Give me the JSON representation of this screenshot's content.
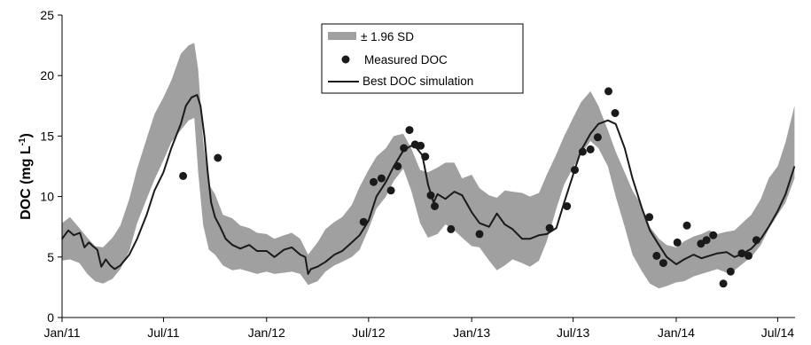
{
  "chart_data": {
    "type": "line",
    "xlabel": "",
    "ylabel_main": "DOC (mg L",
    "ylabel_sup": "-1",
    "ylabel_close": ")",
    "ylim": [
      0,
      25
    ],
    "yticks": [
      "0",
      "5",
      "10",
      "15",
      "20",
      "25"
    ],
    "xticks": [
      {
        "label": "Jan/11",
        "date": "2011-01-01"
      },
      {
        "label": "Jul/11",
        "date": "2011-07-01"
      },
      {
        "label": "Jan/12",
        "date": "2012-01-01"
      },
      {
        "label": "Jul/12",
        "date": "2012-07-01"
      },
      {
        "label": "Jan/13",
        "date": "2013-01-01"
      },
      {
        "label": "Jul/13",
        "date": "2013-07-01"
      },
      {
        "label": "Jan/14",
        "date": "2014-01-01"
      },
      {
        "label": "Jul/14",
        "date": "2014-07-01"
      }
    ],
    "xlim": [
      "2011-01-01",
      "2014-08-01"
    ],
    "grid": false,
    "legend_position": "top-center",
    "colors": {
      "band": "#a0a0a0",
      "line": "#1a1a1a",
      "points": "#1a1a1a"
    },
    "series": [
      {
        "name": "± 1.96 SD",
        "kind": "band",
        "x": [
          "2011-01-01",
          "2011-01-15",
          "2011-02-01",
          "2011-02-15",
          "2011-03-01",
          "2011-03-15",
          "2011-04-01",
          "2011-04-15",
          "2011-05-01",
          "2011-05-15",
          "2011-06-01",
          "2011-06-15",
          "2011-07-01",
          "2011-07-15",
          "2011-08-01",
          "2011-08-15",
          "2011-08-25",
          "2011-09-01",
          "2011-09-10",
          "2011-09-20",
          "2011-10-01",
          "2011-10-15",
          "2011-11-01",
          "2011-11-15",
          "2011-12-01",
          "2011-12-15",
          "2012-01-01",
          "2012-01-15",
          "2012-02-01",
          "2012-02-15",
          "2012-03-01",
          "2012-03-15",
          "2012-04-01",
          "2012-04-15",
          "2012-05-01",
          "2012-05-15",
          "2012-06-01",
          "2012-06-15",
          "2012-07-01",
          "2012-07-15",
          "2012-08-01",
          "2012-08-15",
          "2012-09-01",
          "2012-09-15",
          "2012-10-01",
          "2012-10-15",
          "2012-11-01",
          "2012-11-15",
          "2012-12-01",
          "2012-12-15",
          "2013-01-01",
          "2013-01-15",
          "2013-02-01",
          "2013-02-15",
          "2013-03-01",
          "2013-03-15",
          "2013-04-01",
          "2013-04-15",
          "2013-05-01",
          "2013-05-15",
          "2013-06-01",
          "2013-06-15",
          "2013-07-01",
          "2013-07-15",
          "2013-08-01",
          "2013-08-15",
          "2013-09-01",
          "2013-09-15",
          "2013-10-01",
          "2013-10-15",
          "2013-11-01",
          "2013-11-15",
          "2013-12-01",
          "2013-12-15",
          "2014-01-01",
          "2014-01-15",
          "2014-02-01",
          "2014-02-15",
          "2014-03-01",
          "2014-03-15",
          "2014-04-01",
          "2014-04-15",
          "2014-05-01",
          "2014-05-15",
          "2014-06-01",
          "2014-06-15",
          "2014-07-01",
          "2014-07-15",
          "2014-07-31"
        ],
        "upper": [
          7.8,
          8.3,
          7.4,
          6.6,
          5.9,
          5.8,
          6.6,
          7.6,
          9.8,
          12.3,
          14.8,
          16.8,
          18.2,
          19.6,
          21.8,
          22.5,
          22.7,
          20.5,
          14.5,
          11.0,
          10.2,
          8.5,
          8.2,
          7.6,
          7.4,
          7.0,
          6.9,
          6.5,
          6.8,
          7.0,
          6.5,
          5.2,
          6.2,
          7.3,
          7.9,
          8.3,
          9.3,
          10.8,
          12.2,
          13.3,
          14.0,
          15.0,
          15.2,
          14.0,
          12.2,
          12.0,
          12.4,
          12.8,
          12.8,
          11.5,
          11.8,
          10.7,
          10.1,
          9.9,
          10.5,
          10.4,
          10.3,
          10.0,
          10.3,
          11.8,
          13.5,
          15.0,
          16.5,
          17.8,
          18.7,
          17.5,
          15.5,
          13.7,
          12.0,
          10.5,
          9.2,
          7.5,
          6.5,
          6.0,
          5.8,
          6.3,
          6.7,
          6.9,
          7.2,
          6.9,
          7.1,
          7.2,
          7.9,
          8.5,
          9.8,
          11.5,
          12.5,
          14.5,
          17.5
        ],
        "lower": [
          4.7,
          4.8,
          4.5,
          3.6,
          3.0,
          2.8,
          3.2,
          4.0,
          5.5,
          7.8,
          9.8,
          11.4,
          13.0,
          14.5,
          15.5,
          16.3,
          16.5,
          12.0,
          7.6,
          5.6,
          5.2,
          4.3,
          3.9,
          4.0,
          3.8,
          3.6,
          3.8,
          3.6,
          3.7,
          3.8,
          3.6,
          2.7,
          3.0,
          3.8,
          4.3,
          4.6,
          5.0,
          5.6,
          7.3,
          9.0,
          10.0,
          11.3,
          12.3,
          10.5,
          7.8,
          6.6,
          6.9,
          7.7,
          7.2,
          6.6,
          5.9,
          5.8,
          4.7,
          3.9,
          4.3,
          4.8,
          4.5,
          4.2,
          4.7,
          6.3,
          9.0,
          11.0,
          12.4,
          13.5,
          14.6,
          14.0,
          12.5,
          10.0,
          7.5,
          5.2,
          3.8,
          2.8,
          2.4,
          2.6,
          2.9,
          3.0,
          3.4,
          3.6,
          3.8,
          4.0,
          3.7,
          3.9,
          4.5,
          5.0,
          6.0,
          7.3,
          8.5,
          9.5,
          11.5
        ]
      },
      {
        "name": "Measured DOC",
        "kind": "points",
        "x": [
          "2011-08-05",
          "2011-10-06",
          "2012-06-22",
          "2012-07-10",
          "2012-07-24",
          "2012-08-10",
          "2012-08-22",
          "2012-09-02",
          "2012-09-12",
          "2012-09-22",
          "2012-10-02",
          "2012-10-10",
          "2012-10-20",
          "2012-10-27",
          "2012-11-25",
          "2013-01-15",
          "2013-05-20",
          "2013-06-20",
          "2013-07-04",
          "2013-07-18",
          "2013-08-01",
          "2013-08-14",
          "2013-09-02",
          "2013-09-14",
          "2013-11-14",
          "2013-11-27",
          "2013-12-09",
          "2014-01-03",
          "2014-01-20",
          "2014-02-14",
          "2014-02-24",
          "2014-03-08",
          "2014-03-26",
          "2014-04-08",
          "2014-04-28",
          "2014-05-10",
          "2014-05-24"
        ],
        "y": [
          11.7,
          13.2,
          7.9,
          11.2,
          11.5,
          10.5,
          12.5,
          14.0,
          15.5,
          14.3,
          14.2,
          13.3,
          10.1,
          9.2,
          7.3,
          6.9,
          7.4,
          9.2,
          12.2,
          13.7,
          13.9,
          14.9,
          18.7,
          16.9,
          8.3,
          5.1,
          4.5,
          6.2,
          7.6,
          6.1,
          6.4,
          6.8,
          2.8,
          3.8,
          5.3,
          5.1,
          6.4
        ]
      },
      {
        "name": "Best DOC simulation",
        "kind": "line",
        "x": [
          "2011-01-01",
          "2011-01-12",
          "2011-01-22",
          "2011-02-02",
          "2011-02-10",
          "2011-02-18",
          "2011-02-25",
          "2011-03-05",
          "2011-03-12",
          "2011-03-20",
          "2011-03-28",
          "2011-04-05",
          "2011-04-15",
          "2011-05-01",
          "2011-05-15",
          "2011-06-01",
          "2011-06-15",
          "2011-07-01",
          "2011-07-15",
          "2011-08-01",
          "2011-08-10",
          "2011-08-20",
          "2011-08-30",
          "2011-09-05",
          "2011-09-12",
          "2011-09-18",
          "2011-09-24",
          "2011-10-01",
          "2011-10-10",
          "2011-10-20",
          "2011-11-01",
          "2011-11-15",
          "2011-12-01",
          "2011-12-15",
          "2012-01-01",
          "2012-01-15",
          "2012-02-01",
          "2012-02-15",
          "2012-03-01",
          "2012-03-10",
          "2012-03-15",
          "2012-03-20",
          "2012-04-01",
          "2012-04-15",
          "2012-05-01",
          "2012-05-15",
          "2012-06-01",
          "2012-06-15",
          "2012-07-01",
          "2012-07-15",
          "2012-08-01",
          "2012-08-15",
          "2012-09-01",
          "2012-09-15",
          "2012-09-25",
          "2012-10-05",
          "2012-10-15",
          "2012-10-25",
          "2012-11-01",
          "2012-11-15",
          "2012-12-01",
          "2012-12-15",
          "2013-01-01",
          "2013-01-15",
          "2013-02-01",
          "2013-02-15",
          "2013-03-01",
          "2013-03-15",
          "2013-04-01",
          "2013-04-15",
          "2013-05-01",
          "2013-05-15",
          "2013-06-01",
          "2013-06-15",
          "2013-07-01",
          "2013-07-15",
          "2013-08-01",
          "2013-08-15",
          "2013-09-01",
          "2013-09-15",
          "2013-10-01",
          "2013-10-15",
          "2013-11-01",
          "2013-11-15",
          "2013-12-01",
          "2013-12-15",
          "2014-01-01",
          "2014-01-15",
          "2014-02-01",
          "2014-02-15",
          "2014-03-01",
          "2014-03-15",
          "2014-04-01",
          "2014-04-15",
          "2014-05-01",
          "2014-05-15",
          "2014-06-01",
          "2014-06-15",
          "2014-07-01",
          "2014-07-15",
          "2014-07-31"
        ],
        "y": [
          6.5,
          7.2,
          6.8,
          7.0,
          5.8,
          6.2,
          5.9,
          5.6,
          4.2,
          4.8,
          4.3,
          4.0,
          4.3,
          5.2,
          6.5,
          8.5,
          10.5,
          12.0,
          14.0,
          16.0,
          17.5,
          18.2,
          18.4,
          17.5,
          15.0,
          12.0,
          9.5,
          8.3,
          7.5,
          6.5,
          6.0,
          5.7,
          6.0,
          5.5,
          5.5,
          5.0,
          5.6,
          5.8,
          5.2,
          5.0,
          3.6,
          4.0,
          4.2,
          4.6,
          5.2,
          5.5,
          6.2,
          6.8,
          8.0,
          10.0,
          11.2,
          12.5,
          13.8,
          14.2,
          14.0,
          13.4,
          11.0,
          9.5,
          10.2,
          9.8,
          10.4,
          10.1,
          8.7,
          7.8,
          7.5,
          8.6,
          7.7,
          7.3,
          6.5,
          6.5,
          6.8,
          6.9,
          7.4,
          9.5,
          11.8,
          13.8,
          15.2,
          16.0,
          16.3,
          16.0,
          14.0,
          11.5,
          9.0,
          7.2,
          6.0,
          5.0,
          4.4,
          4.8,
          5.2,
          4.9,
          5.1,
          5.3,
          5.4,
          5.0,
          5.3,
          5.7,
          6.5,
          7.5,
          8.8,
          10.2,
          12.5
        ]
      }
    ]
  }
}
